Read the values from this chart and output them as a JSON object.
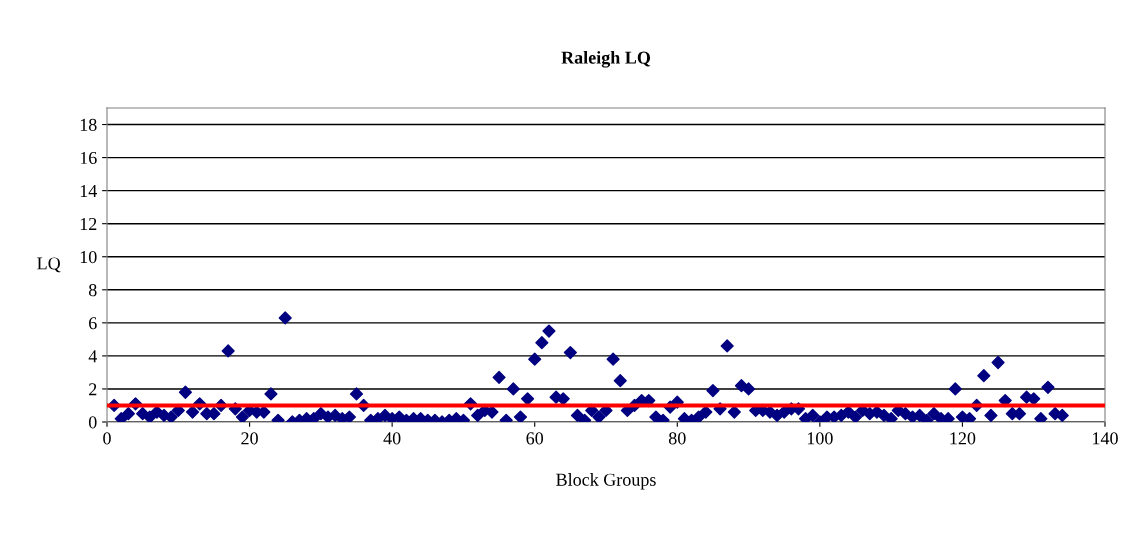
{
  "chart_data": {
    "type": "scatter",
    "title": "Raleigh LQ",
    "xlabel": "Block Groups",
    "ylabel": "LQ",
    "x": [
      1,
      2,
      3,
      4,
      5,
      6,
      7,
      8,
      9,
      10,
      11,
      12,
      13,
      14,
      15,
      16,
      17,
      18,
      19,
      20,
      21,
      22,
      23,
      24,
      25,
      26,
      27,
      28,
      29,
      30,
      31,
      32,
      33,
      34,
      35,
      36,
      37,
      38,
      39,
      40,
      41,
      42,
      43,
      44,
      45,
      46,
      47,
      48,
      49,
      50,
      51,
      52,
      53,
      54,
      55,
      56,
      57,
      58,
      59,
      60,
      61,
      62,
      63,
      64,
      65,
      66,
      67,
      68,
      69,
      70,
      71,
      72,
      73,
      74,
      75,
      76,
      77,
      78,
      79,
      80,
      81,
      82,
      83,
      84,
      85,
      86,
      87,
      88,
      89,
      90,
      91,
      92,
      93,
      94,
      95,
      96,
      97,
      98,
      99,
      100,
      101,
      102,
      103,
      104,
      105,
      106,
      107,
      108,
      109,
      110,
      111,
      112,
      113,
      114,
      115,
      116,
      117,
      118,
      119,
      120,
      121,
      122,
      123,
      124,
      125,
      126,
      127,
      128,
      129,
      130,
      131,
      132,
      133,
      134
    ],
    "series": [
      {
        "color": "#000080",
        "values": [
          1.0,
          0.2,
          0.5,
          1.1,
          0.5,
          0.3,
          0.6,
          0.4,
          0.3,
          0.7,
          1.8,
          0.6,
          1.1,
          0.5,
          0.5,
          1.0,
          4.3,
          0.8,
          0.3,
          0.7,
          0.6,
          0.6,
          1.7,
          0.1,
          6.3,
          0.0,
          0.1,
          0.2,
          0.2,
          0.5,
          0.3,
          0.4,
          0.2,
          0.3,
          1.7,
          1.0,
          0.1,
          0.2,
          0.4,
          0.2,
          0.3,
          0.1,
          0.2,
          0.2,
          0.1,
          0.1,
          0.0,
          0.1,
          0.2,
          0.1,
          1.1,
          0.4,
          0.7,
          0.6,
          2.7,
          0.1,
          2.0,
          0.3,
          1.4,
          3.8,
          4.8,
          5.5,
          1.5,
          1.4,
          4.2,
          0.4,
          0.1,
          0.7,
          0.3,
          0.7,
          3.8,
          2.5,
          0.7,
          1.0,
          1.3,
          1.3,
          0.3,
          0.1,
          0.9,
          1.2,
          0.2,
          0.1,
          0.3,
          0.6,
          1.9,
          0.8,
          4.6,
          0.6,
          2.2,
          2.0,
          0.7,
          0.7,
          0.6,
          0.4,
          0.6,
          0.8,
          0.8,
          0.2,
          0.4,
          0.0,
          0.3,
          0.3,
          0.4,
          0.6,
          0.3,
          0.7,
          0.5,
          0.6,
          0.4,
          0.2,
          0.7,
          0.5,
          0.3,
          0.4,
          0.1,
          0.5,
          0.2,
          0.2,
          2.0,
          0.3,
          0.2,
          1.0,
          2.8,
          0.4,
          3.6,
          1.3,
          0.5,
          0.5,
          1.5,
          1.4,
          0.2,
          2.1,
          0.5,
          0.4
        ]
      }
    ],
    "xlim": [
      0,
      140
    ],
    "xticks": [
      0,
      20,
      40,
      60,
      80,
      100,
      120,
      140
    ],
    "ylim": [
      0,
      19
    ],
    "yticks": [
      0,
      2,
      4,
      6,
      8,
      10,
      12,
      14,
      16,
      18
    ],
    "ref_lines": [
      {
        "axis": "y",
        "value": 1,
        "color": "#ff0000"
      }
    ],
    "grid": "y",
    "marker": "diamond",
    "legend": false
  }
}
